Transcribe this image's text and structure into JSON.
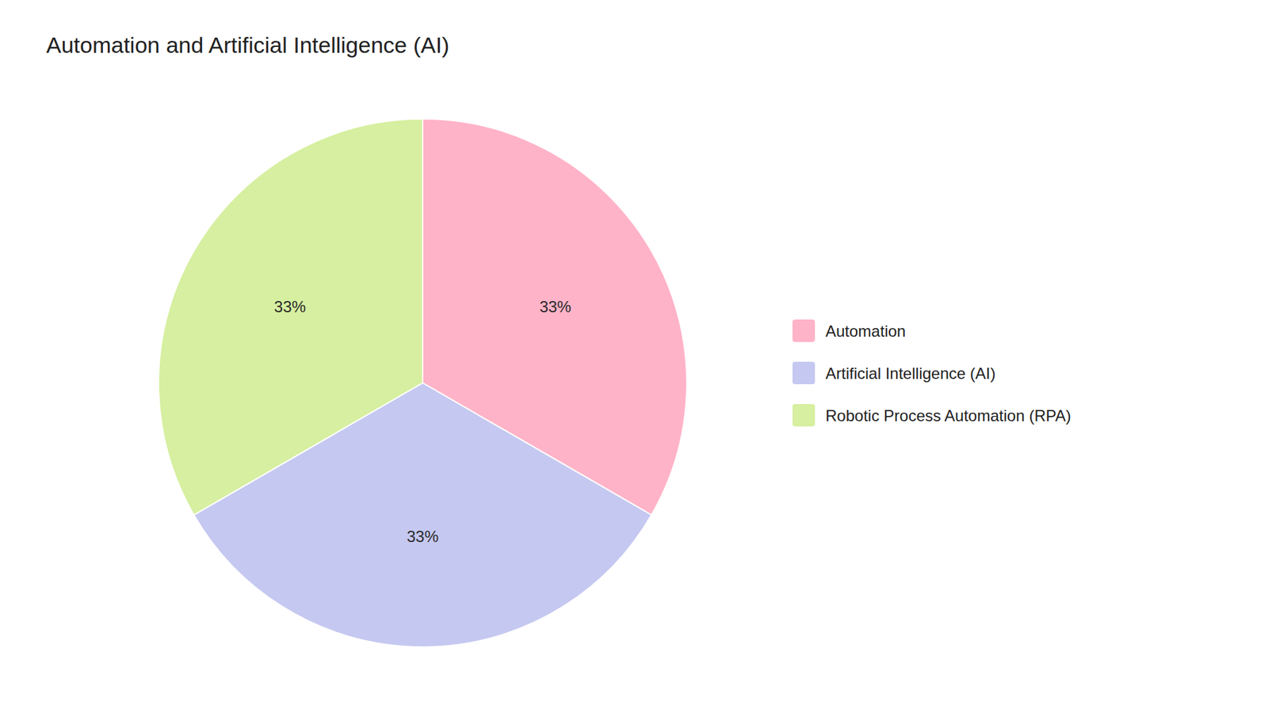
{
  "chart_data": {
    "type": "pie",
    "title": "Automation and Artificial Intelligence (AI)",
    "categories": [
      "Automation",
      "Artificial Intelligence (AI)",
      "Robotic Process Automation (RPA)"
    ],
    "values": [
      33,
      33,
      33
    ],
    "value_labels": [
      "33%",
      "33%",
      "33%"
    ],
    "colors": [
      "#FFB3C8",
      "#C5C8F0",
      "#D6EFA0"
    ],
    "data_labels": true,
    "legend": "right"
  }
}
